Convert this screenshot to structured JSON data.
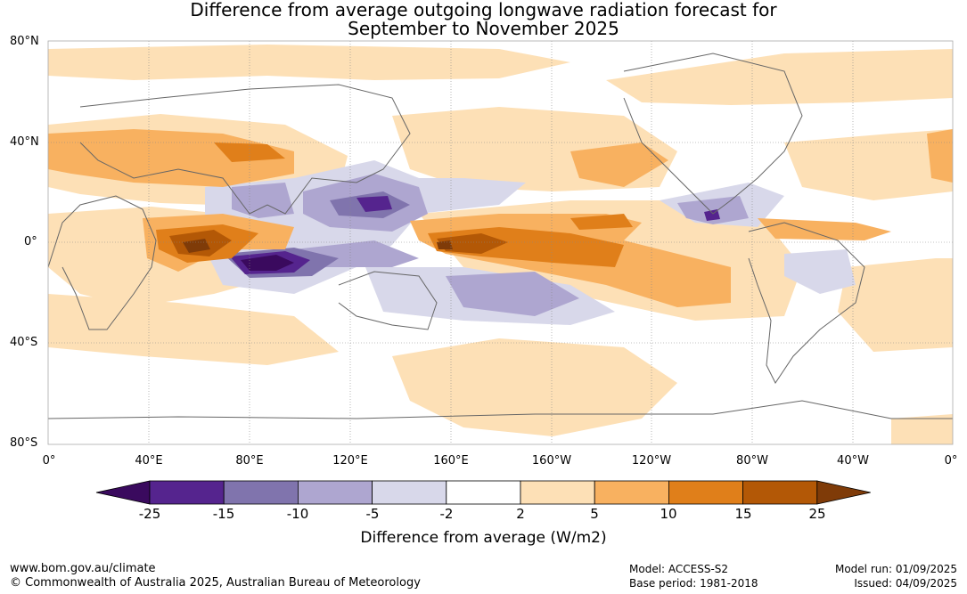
{
  "title_line1": "Difference from average outgoing longwave radiation forecast for",
  "title_line2": "September to November 2025",
  "lat_labels": [
    "80°N",
    "40°N",
    "0°",
    "40°S",
    "80°S"
  ],
  "lon_labels": [
    "0°",
    "40°E",
    "80°E",
    "120°E",
    "160°E",
    "160°W",
    "120°W",
    "80°W",
    "40°W",
    "0°"
  ],
  "colorbar": {
    "ticks": [
      "-25",
      "-15",
      "-10",
      "-5",
      "-2",
      "2",
      "5",
      "10",
      "15",
      "25"
    ],
    "colors": [
      "#3a0a5e",
      "#55248e",
      "#8074ad",
      "#aea6d0",
      "#d8d8ea",
      "#ffffff",
      "#fde0b6",
      "#f8b160",
      "#e07f1a",
      "#b35806",
      "#7f3b08"
    ],
    "label": "Difference from average (W/m2)"
  },
  "footer": {
    "url": "www.bom.gov.au/climate",
    "copyright": "© Commonwealth of Australia 2025, Australian Bureau of Meteorology",
    "model": "Model: ACCESS-S2",
    "base_period": "Base period: 1981-2018",
    "model_run": "Model run: 01/09/2025",
    "issued": "Issued: 04/09/2025"
  }
}
